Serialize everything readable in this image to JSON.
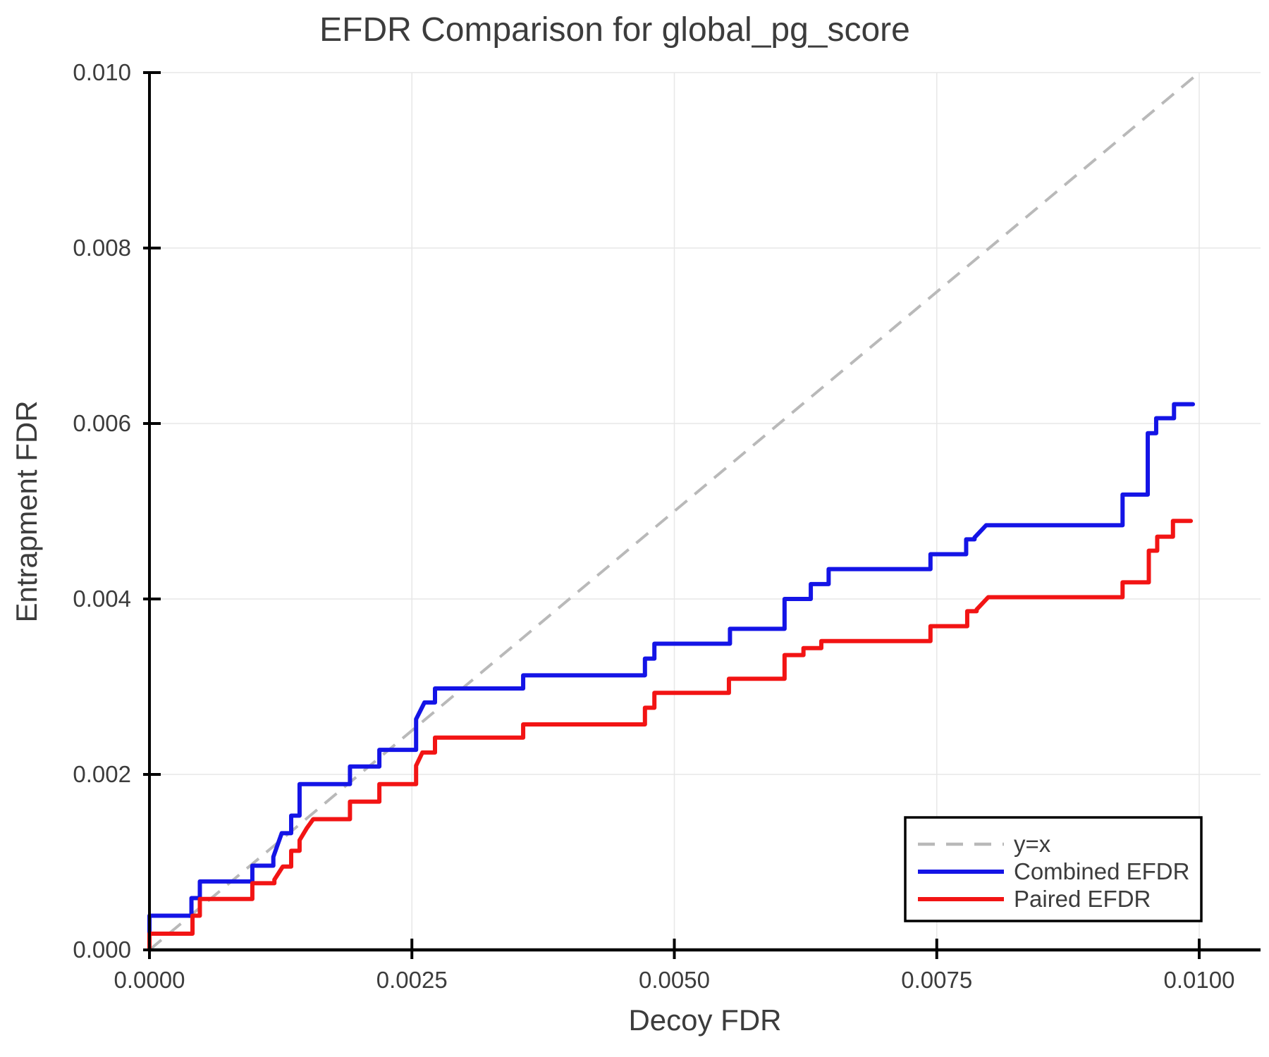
{
  "figure": {
    "background": "#ffffff"
  },
  "chart_data": {
    "type": "line",
    "title": "EFDR Comparison for global_pg_score",
    "xlabel": "Decoy FDR",
    "ylabel": "Entrapment FDR",
    "xlim": [
      0.0,
      0.0106
    ],
    "ylim": [
      0.0,
      0.01
    ],
    "grid": true,
    "grid_color": "#e7e7e7",
    "axis_color": "#000000",
    "text_color": "#3c3c3c",
    "x_ticks": {
      "values": [
        0.0,
        0.0025,
        0.005,
        0.0075,
        0.01
      ],
      "labels": [
        "0.0000",
        "0.0025",
        "0.0050",
        "0.0075",
        "0.0100"
      ]
    },
    "y_ticks": {
      "values": [
        0.0,
        0.002,
        0.004,
        0.006,
        0.008,
        0.01
      ],
      "labels": [
        "0.000",
        "0.002",
        "0.004",
        "0.006",
        "0.008",
        "0.010"
      ]
    },
    "legend": {
      "position": "lower right",
      "entries": [
        {
          "label": "y=x",
          "color": "#b9b9b9",
          "style": "dashed"
        },
        {
          "label": "Combined EFDR",
          "color": "#1414e6",
          "style": "solid"
        },
        {
          "label": "Paired EFDR",
          "color": "#f21414",
          "style": "solid"
        }
      ]
    },
    "series": [
      {
        "name": "y=x",
        "type": "reference-line",
        "color": "#b9b9b9",
        "dashed": true,
        "points": [
          [
            0.0,
            0.0
          ],
          [
            0.01,
            0.01
          ]
        ]
      },
      {
        "name": "Combined EFDR",
        "type": "step",
        "color": "#1414e6",
        "points": [
          [
            0.0,
            0.0
          ],
          [
            0.0,
            0.00039
          ],
          [
            0.0004,
            0.00059
          ],
          [
            0.00048,
            0.00078
          ],
          [
            0.00098,
            0.00096
          ],
          [
            0.00118,
            0.00106
          ],
          [
            0.00126,
            0.00133,
            "l"
          ],
          [
            0.00135,
            0.00153
          ],
          [
            0.00143,
            0.00189
          ],
          [
            0.00191,
            0.00209
          ],
          [
            0.00219,
            0.00228
          ],
          [
            0.00254,
            0.00263
          ],
          [
            0.00262,
            0.00282,
            "l"
          ],
          [
            0.00272,
            0.00298
          ],
          [
            0.00356,
            0.00313
          ],
          [
            0.00472,
            0.00332
          ],
          [
            0.00481,
            0.00349
          ],
          [
            0.00553,
            0.00366
          ],
          [
            0.00605,
            0.004
          ],
          [
            0.0063,
            0.00417
          ],
          [
            0.00647,
            0.00434
          ],
          [
            0.00744,
            0.00451
          ],
          [
            0.00778,
            0.00468
          ],
          [
            0.00786,
            0.0047
          ],
          [
            0.00797,
            0.00484,
            "l"
          ],
          [
            0.00927,
            0.00519
          ],
          [
            0.00951,
            0.00589
          ],
          [
            0.00959,
            0.00606
          ],
          [
            0.00976,
            0.00622
          ],
          [
            0.00994,
            0.00622
          ]
        ]
      },
      {
        "name": "Paired EFDR",
        "type": "step",
        "color": "#f21414",
        "points": [
          [
            0.0,
            0.0
          ],
          [
            0.0,
            0.000185
          ],
          [
            0.00041,
            0.00039
          ],
          [
            0.00048,
            0.00058
          ],
          [
            0.00098,
            0.00076
          ],
          [
            0.00119,
            0.0008
          ],
          [
            0.00127,
            0.00095,
            "l"
          ],
          [
            0.00135,
            0.00113
          ],
          [
            0.00143,
            0.00125
          ],
          [
            0.0015,
            0.00139,
            "l"
          ],
          [
            0.00156,
            0.00149,
            "l"
          ],
          [
            0.00191,
            0.00169
          ],
          [
            0.00219,
            0.00189
          ],
          [
            0.00254,
            0.0021
          ],
          [
            0.0026,
            0.00225,
            "l"
          ],
          [
            0.00272,
            0.00242
          ],
          [
            0.00356,
            0.00257
          ],
          [
            0.00472,
            0.00276
          ],
          [
            0.00481,
            0.00293
          ],
          [
            0.00552,
            0.00309
          ],
          [
            0.00605,
            0.00336
          ],
          [
            0.00623,
            0.00344
          ],
          [
            0.0064,
            0.00352
          ],
          [
            0.00744,
            0.00369
          ],
          [
            0.00779,
            0.00386
          ],
          [
            0.00788,
            0.00388
          ],
          [
            0.00799,
            0.00402,
            "l"
          ],
          [
            0.00927,
            0.00419
          ],
          [
            0.00952,
            0.00455
          ],
          [
            0.0096,
            0.00471
          ],
          [
            0.00975,
            0.00489
          ],
          [
            0.00992,
            0.00489
          ]
        ]
      }
    ]
  }
}
